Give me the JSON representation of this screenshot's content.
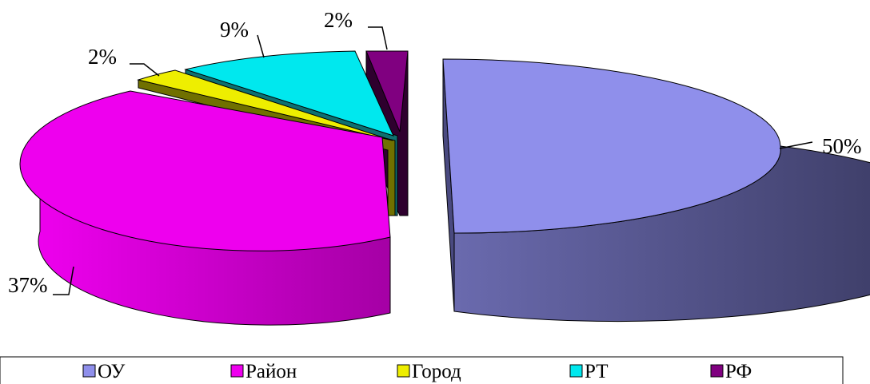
{
  "chart_data": {
    "type": "pie",
    "style": "3d-exploded",
    "categories": [
      "ОУ",
      "Район",
      "Город",
      "РТ",
      "РФ"
    ],
    "values": [
      50,
      37,
      2,
      9,
      2
    ],
    "labels": [
      "50%",
      "37%",
      "2%",
      "9%",
      "2%"
    ],
    "colors": [
      "#8f8feb",
      "#ee00ee",
      "#eeee00",
      "#00e8ee",
      "#800080"
    ],
    "legend": "bottom",
    "title": ""
  },
  "legend": {
    "items": [
      {
        "label": "ОУ",
        "color": "#8f8feb"
      },
      {
        "label": "Район",
        "color": "#ee00ee"
      },
      {
        "label": "Город",
        "color": "#eeee00"
      },
      {
        "label": "РТ",
        "color": "#00e8ee"
      },
      {
        "label": "РФ",
        "color": "#800080"
      }
    ]
  }
}
